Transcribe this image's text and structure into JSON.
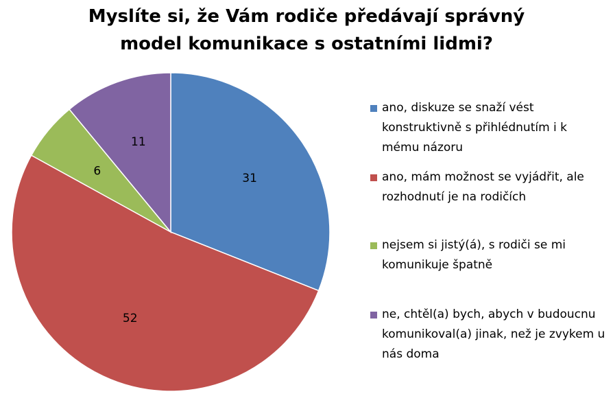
{
  "chart_data": {
    "type": "pie",
    "title": "Myslíte si, že Vám rodiče předávají správný model komunikace s ostatními lidmi?",
    "categories": [
      "ano, diskuze se snaží vést konstruktivně s přihlédnutím i k mému názoru",
      "ano, mám možnost se vyjádřit, ale rozhodnutí je na rodičích",
      "nejsem si jistý(á), s rodiči se mi komunikuje špatně",
      "ne, chtěl(a) bych, abych v budoucnu komunikoval(a) jinak, než je zvykem u nás doma"
    ],
    "values": [
      31,
      52,
      6,
      11
    ],
    "colors": [
      "#4f81bd",
      "#c0504d",
      "#9bbb59",
      "#8064a2"
    ],
    "legend": "right"
  }
}
